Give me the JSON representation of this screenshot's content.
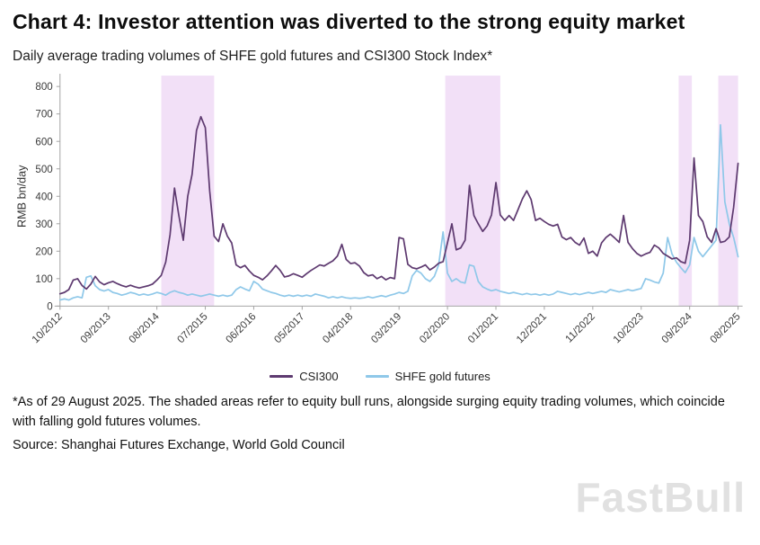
{
  "header": {
    "title": "Chart 4: Investor attention was diverted to the strong equity market",
    "subtitle": "Daily average trading volumes of SHFE gold futures and CSI300 Stock Index*"
  },
  "chart_data": {
    "type": "line",
    "title": "Daily average trading volumes of SHFE gold futures and CSI300 Stock Index",
    "ylabel": "RMB bn/day",
    "xlabel": "",
    "ylim": [
      0,
      800
    ],
    "y_ticks": [
      0,
      100,
      200,
      300,
      400,
      500,
      600,
      700,
      800
    ],
    "x_tick_labels": [
      "10/2012",
      "09/2013",
      "08/2014",
      "07/2015",
      "06/2016",
      "05/2017",
      "04/2018",
      "03/2019",
      "02/2020",
      "01/2021",
      "12/2021",
      "11/2022",
      "10/2023",
      "09/2024",
      "08/2025"
    ],
    "x_tick_indices": [
      0,
      11,
      22,
      33,
      44,
      55,
      66,
      77,
      88,
      99,
      110,
      121,
      132,
      143,
      154
    ],
    "n_points": 155,
    "x_unit": "monthly from 10/2012 to 08/2025",
    "grid": false,
    "legend_position": "bottom",
    "series": [
      {
        "name": "CSI300",
        "color": "#5e3a70",
        "values": [
          45,
          50,
          60,
          95,
          100,
          75,
          62,
          80,
          108,
          88,
          78,
          85,
          90,
          82,
          75,
          70,
          76,
          70,
          66,
          70,
          74,
          80,
          95,
          112,
          160,
          260,
          430,
          330,
          240,
          400,
          480,
          640,
          690,
          650,
          420,
          255,
          235,
          300,
          255,
          230,
          150,
          140,
          148,
          128,
          112,
          105,
          96,
          110,
          128,
          148,
          130,
          106,
          110,
          118,
          112,
          105,
          118,
          130,
          140,
          150,
          146,
          156,
          165,
          182,
          225,
          170,
          155,
          158,
          146,
          122,
          110,
          114,
          100,
          108,
          96,
          104,
          100,
          250,
          245,
          152,
          140,
          136,
          142,
          150,
          132,
          142,
          156,
          162,
          230,
          300,
          205,
          212,
          240,
          440,
          330,
          300,
          272,
          292,
          332,
          450,
          332,
          312,
          330,
          312,
          350,
          390,
          420,
          388,
          312,
          320,
          308,
          298,
          292,
          298,
          252,
          242,
          250,
          232,
          222,
          248,
          192,
          200,
          182,
          230,
          250,
          262,
          248,
          232,
          330,
          232,
          210,
          192,
          182,
          190,
          196,
          222,
          212,
          192,
          182,
          172,
          176,
          162,
          156,
          240,
          540,
          330,
          308,
          252,
          232,
          282,
          232,
          236,
          252,
          360,
          520
        ]
      },
      {
        "name": "SHFE gold futures",
        "color": "#8fc8e9",
        "values": [
          22,
          26,
          22,
          30,
          34,
          30,
          105,
          110,
          74,
          60,
          55,
          60,
          50,
          46,
          40,
          44,
          50,
          46,
          40,
          44,
          40,
          44,
          50,
          46,
          40,
          50,
          56,
          50,
          46,
          40,
          44,
          40,
          36,
          40,
          44,
          40,
          36,
          40,
          36,
          40,
          60,
          70,
          62,
          56,
          90,
          80,
          62,
          56,
          50,
          46,
          40,
          36,
          40,
          36,
          40,
          36,
          40,
          36,
          44,
          40,
          36,
          30,
          34,
          30,
          34,
          30,
          28,
          30,
          28,
          30,
          34,
          30,
          34,
          38,
          34,
          40,
          44,
          50,
          46,
          54,
          110,
          130,
          120,
          100,
          90,
          108,
          150,
          270,
          120,
          90,
          100,
          88,
          84,
          150,
          145,
          90,
          70,
          62,
          56,
          60,
          54,
          50,
          46,
          50,
          46,
          42,
          46,
          42,
          44,
          40,
          44,
          40,
          44,
          54,
          50,
          46,
          42,
          46,
          42,
          46,
          50,
          46,
          50,
          54,
          50,
          60,
          56,
          52,
          56,
          60,
          56,
          60,
          64,
          100,
          95,
          88,
          84,
          120,
          250,
          190,
          160,
          140,
          122,
          150,
          250,
          200,
          180,
          200,
          220,
          240,
          660,
          380,
          300,
          250,
          180
        ]
      }
    ],
    "shaded_bands": {
      "color": "#e7c7f1",
      "opacity": 0.55,
      "meaning": "equity bull runs",
      "ranges": [
        [
          23,
          35
        ],
        [
          87.5,
          100
        ],
        [
          140.5,
          143.5
        ],
        [
          149.5,
          154.5
        ]
      ]
    }
  },
  "footer": {
    "footnote": "*As of 29 August 2025. The shaded areas refer to equity bull runs, alongside surging equity trading volumes, which coincide with falling gold futures volumes.",
    "source": "Source: Shanghai Futures Exchange, World Gold Council",
    "watermark": "FastBull"
  }
}
